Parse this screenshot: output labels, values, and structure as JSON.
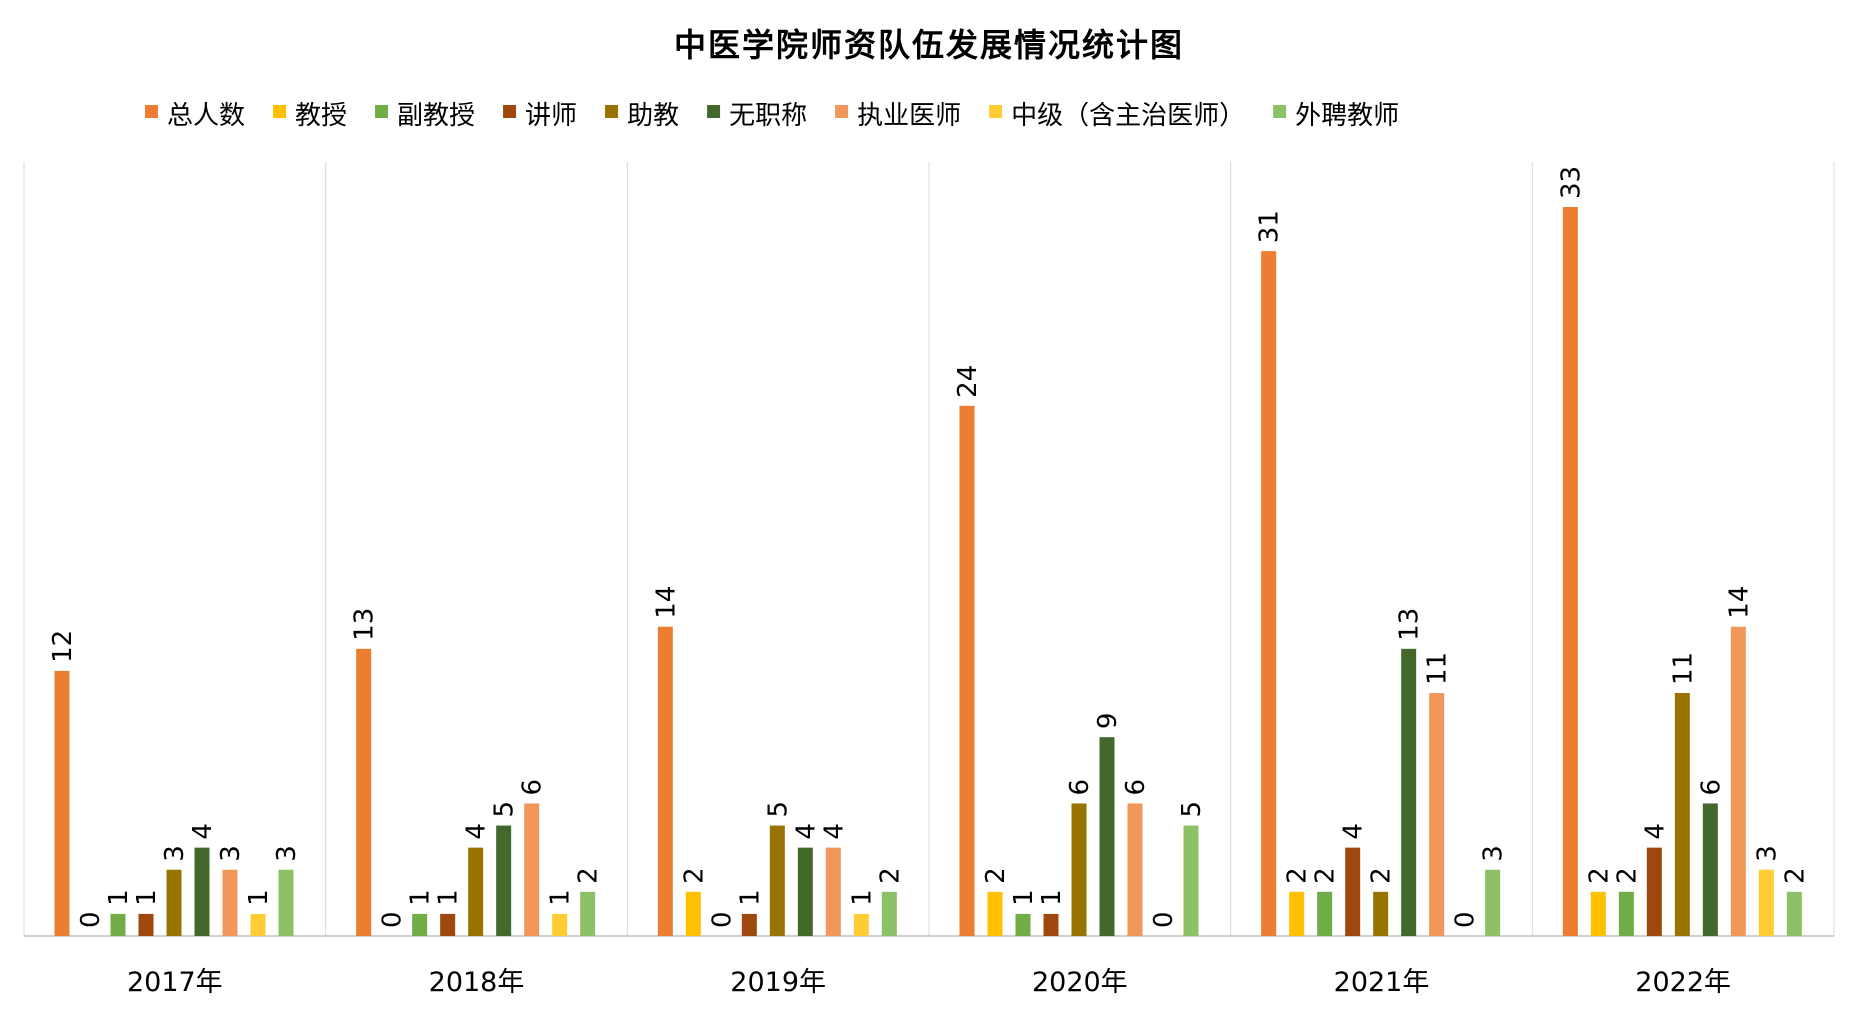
{
  "chart_data": {
    "type": "bar",
    "title": "中医学院师资队伍发展情况统计图",
    "xlabel": "",
    "ylabel": "",
    "ylim": [
      0,
      33
    ],
    "grid": false,
    "legend_position": "top",
    "categories": [
      "2017年",
      "2018年",
      "2019年",
      "2020年",
      "2021年",
      "2022年"
    ],
    "series": [
      {
        "name": "总人数",
        "color": "#ED7D31",
        "values": [
          12,
          13,
          14,
          24,
          31,
          33
        ]
      },
      {
        "name": "教授",
        "color": "#FFC000",
        "values": [
          0,
          0,
          2,
          2,
          2,
          2
        ]
      },
      {
        "name": "副教授",
        "color": "#70AD47",
        "values": [
          1,
          1,
          0,
          1,
          2,
          2
        ]
      },
      {
        "name": "讲师",
        "color": "#9E480E",
        "values": [
          1,
          1,
          1,
          1,
          4,
          4
        ]
      },
      {
        "name": "助教",
        "color": "#997300",
        "values": [
          3,
          4,
          5,
          6,
          2,
          11
        ]
      },
      {
        "name": "无职称",
        "color": "#43682B",
        "values": [
          4,
          5,
          4,
          9,
          13,
          6
        ]
      },
      {
        "name": "执业医师",
        "color": "#F1975A",
        "values": [
          3,
          6,
          4,
          6,
          11,
          14
        ]
      },
      {
        "name": "中级（含主治医师）",
        "color": "#FFCD33",
        "values": [
          1,
          1,
          1,
          0,
          0,
          3
        ]
      },
      {
        "name": "外聘教师",
        "color": "#8CC168",
        "values": [
          3,
          2,
          2,
          5,
          3,
          2
        ]
      }
    ]
  }
}
